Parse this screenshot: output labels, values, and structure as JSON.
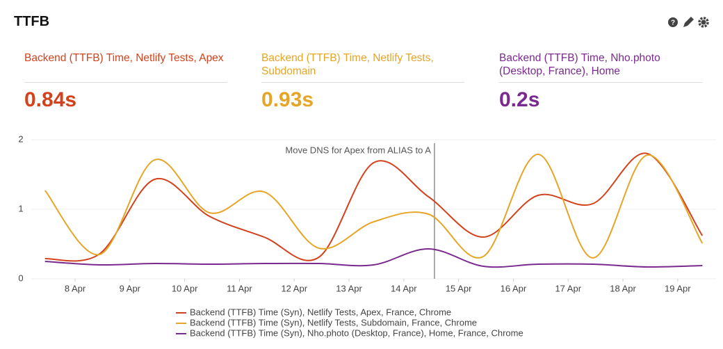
{
  "header": {
    "title": "TTFB"
  },
  "stats": [
    {
      "label": "Backend (TTFB) Time, Netlify Tests, Apex",
      "value": "0.84s",
      "color": "#d2421c"
    },
    {
      "label": "Backend (TTFB) Time, Netlify Tests, Subdomain",
      "value": "0.93s",
      "color": "#e6a526"
    },
    {
      "label": "Backend (TTFB) Time, Nho.photo (Desktop, France), Home",
      "value": "0.2s",
      "color": "#7a2a8e"
    }
  ],
  "chart_data": {
    "type": "line",
    "x": [
      7.45,
      8.45,
      9.45,
      10.45,
      11.45,
      12.45,
      13.45,
      14.45,
      15.45,
      16.45,
      17.45,
      18.45,
      19.45
    ],
    "xlim": [
      7.2,
      19.7
    ],
    "xticks": [
      {
        "value": 8,
        "label": "8 Apr"
      },
      {
        "value": 9,
        "label": "9 Apr"
      },
      {
        "value": 10,
        "label": "10 Apr"
      },
      {
        "value": 11,
        "label": "11 Apr"
      },
      {
        "value": 12,
        "label": "12 Apr"
      },
      {
        "value": 13,
        "label": "13 Apr"
      },
      {
        "value": 14,
        "label": "14 Apr"
      },
      {
        "value": 15,
        "label": "15 Apr"
      },
      {
        "value": 16,
        "label": "16 Apr"
      },
      {
        "value": 17,
        "label": "17 Apr"
      },
      {
        "value": 18,
        "label": "18 Apr"
      },
      {
        "value": 19,
        "label": "19 Apr"
      }
    ],
    "ylim": [
      0,
      2
    ],
    "yticks": [
      0,
      1,
      2
    ],
    "grid": true,
    "annotations": [
      {
        "x": 14.56,
        "text": "Move DNS for Apex from ALIAS to A"
      }
    ],
    "series": [
      {
        "name": "Backend (TTFB) Time (Syn), Netlify Tests, Apex, France, Chrome",
        "color": "#d2421c",
        "values": [
          0.29,
          0.36,
          1.43,
          0.9,
          0.6,
          0.31,
          1.67,
          1.18,
          0.6,
          1.2,
          1.08,
          1.8,
          0.62
        ]
      },
      {
        "name": "Backend (TTFB) Time (Syn), Netlify Tests, Subdomain, France, Chrome",
        "color": "#e6a526",
        "values": [
          1.27,
          0.35,
          1.71,
          0.95,
          1.25,
          0.44,
          0.82,
          0.93,
          0.32,
          1.79,
          0.3,
          1.78,
          0.51
        ]
      },
      {
        "name": "Backend (TTFB) Time (Syn), Nho.photo (Desktop, France), Home, France, Chrome",
        "color": "#7a2a8e",
        "values": [
          0.25,
          0.2,
          0.22,
          0.21,
          0.22,
          0.22,
          0.2,
          0.43,
          0.18,
          0.21,
          0.21,
          0.17,
          0.19
        ]
      }
    ]
  }
}
